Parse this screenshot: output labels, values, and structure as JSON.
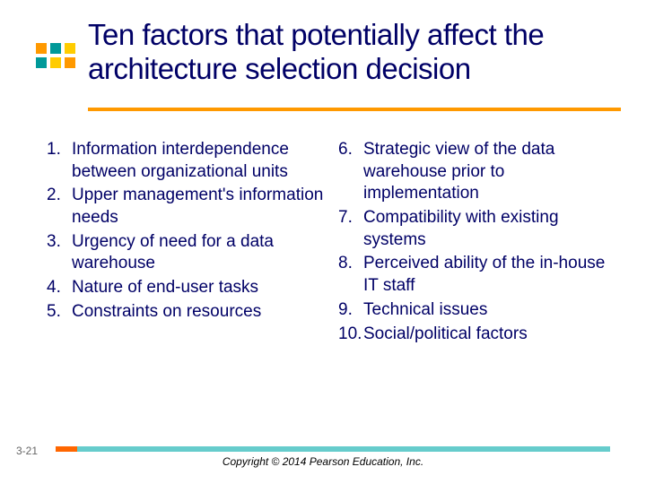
{
  "title": "Ten factors that potentially affect the architecture selection decision",
  "title_color": "#000066",
  "title_fontsize": 33,
  "underline_color": "#ff9900",
  "square_colors": [
    "#ff9900",
    "#009999",
    "#ffcc00",
    "#009999",
    "#ffcc00",
    "#ff9900"
  ],
  "body_color": "#000066",
  "body_fontsize": 19,
  "left_items": [
    "Information interdependence between organizational units",
    "Upper management's information needs",
    "Urgency of need for a data warehouse",
    "Nature of end-user tasks",
    "Constraints on resources"
  ],
  "right_items": [
    "Strategic view of the data warehouse prior to implementation",
    "Compatibility with existing systems",
    "Perceived ability of the in-house IT staff",
    "Technical issues",
    "Social/political factors"
  ],
  "page_number": "3-21",
  "copyright": "Copyright © 2014 Pearson Education, Inc.",
  "footer_colors": {
    "left": "#ff6600",
    "right": "#66cccc"
  },
  "background_color": "#ffffff"
}
